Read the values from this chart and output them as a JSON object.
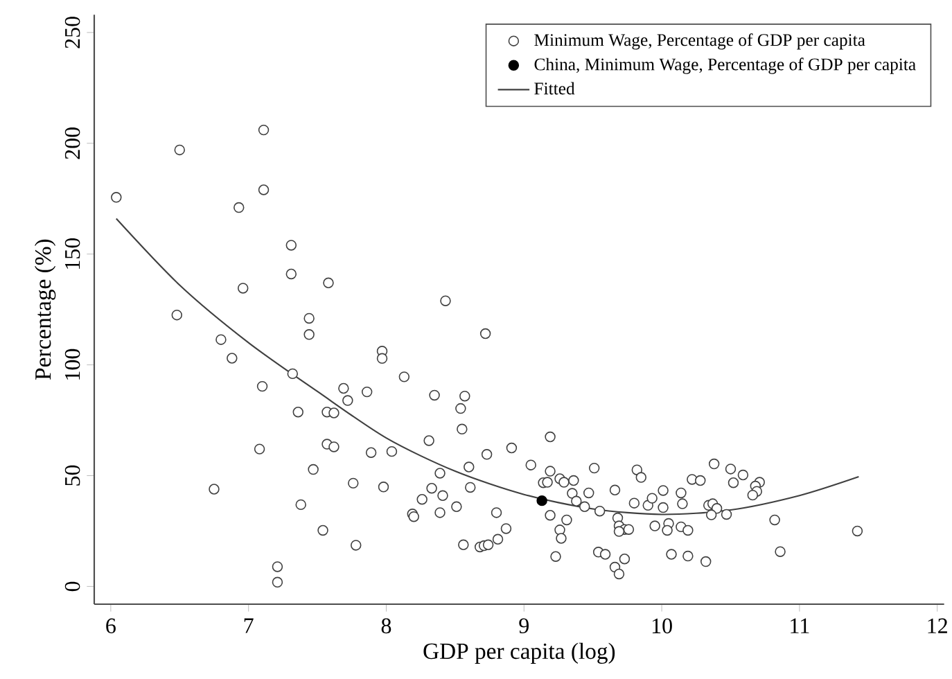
{
  "chart_data": {
    "type": "scatter",
    "xlabel": "GDP per capita (log)",
    "ylabel": "Percentage (%)",
    "xlim": [
      5.88,
      12.05
    ],
    "ylim": [
      -8,
      258
    ],
    "xticks": [
      6,
      7,
      8,
      9,
      10,
      11,
      12
    ],
    "yticks": [
      0,
      50,
      100,
      150,
      200,
      250
    ],
    "grid": false,
    "legend": "top right",
    "series": [
      {
        "name": "Minimum Wage, Percentage of GDP per capita",
        "color": "#404040",
        "marker": "circle",
        "x": [
          6.04,
          6.5,
          7.11,
          7.11,
          6.93,
          7.31,
          7.31,
          7.58,
          6.96,
          6.48,
          7.44,
          7.44,
          6.8,
          6.88,
          7.32,
          7.1,
          7.69,
          7.72,
          7.36,
          7.57,
          7.62,
          7.57,
          7.62,
          7.08,
          7.47,
          7.76,
          6.75,
          7.38,
          7.54,
          7.78,
          7.21,
          7.21,
          8.43,
          8.72,
          7.97,
          7.97,
          8.13,
          7.86,
          8.35,
          8.57,
          8.54,
          8.55,
          8.31,
          9.19,
          7.89,
          8.04,
          8.73,
          8.91,
          8.6,
          9.05,
          9.51,
          8.39,
          9.19,
          9.26,
          9.36,
          9.14,
          9.17,
          9.29,
          7.98,
          8.33,
          8.61,
          8.41,
          9.66,
          9.35,
          9.47,
          8.26,
          9.38,
          9.44,
          9.55,
          8.51,
          8.39,
          8.8,
          8.19,
          8.2,
          9.19,
          9.31,
          8.87,
          9.26,
          9.27,
          8.81,
          8.56,
          8.68,
          8.71,
          8.74,
          9.23,
          9.54,
          9.59,
          9.66,
          9.69,
          9.82,
          9.85,
          9.8,
          9.9,
          9.93,
          10.01,
          10.01,
          10.14,
          10.15,
          10.22,
          10.28,
          10.38,
          10.5,
          10.59,
          10.52,
          10.71,
          10.68,
          10.69,
          10.66,
          10.34,
          10.37,
          10.4,
          10.36,
          10.47,
          9.68,
          9.69,
          9.73,
          9.76,
          9.69,
          9.95,
          10.05,
          10.04,
          10.14,
          10.19,
          10.82,
          11.42,
          10.86,
          9.73,
          10.07,
          10.19,
          10.32
        ],
        "values": [
          175.6,
          197,
          206,
          179,
          171,
          154,
          141,
          137,
          134.6,
          122.5,
          121,
          113.7,
          111.4,
          103,
          96,
          90.3,
          89.4,
          83.9,
          78.7,
          78.7,
          78.3,
          64.2,
          63,
          62,
          52.8,
          46.6,
          43.9,
          36.9,
          25.3,
          18.6,
          8.9,
          1.9,
          128.9,
          114.1,
          106.2,
          102.9,
          94.6,
          87.8,
          86.3,
          85.9,
          80.3,
          71,
          65.8,
          67.5,
          60.4,
          60.9,
          59.6,
          62.5,
          53.9,
          54.8,
          53.4,
          51.1,
          52,
          48.6,
          47.8,
          46.8,
          47,
          47,
          44.9,
          44.3,
          44.7,
          41,
          43.5,
          42,
          42.2,
          39.3,
          38.5,
          36,
          34,
          36,
          33.3,
          33.3,
          32.7,
          31.5,
          32.1,
          30,
          26.1,
          25.5,
          21.7,
          21.3,
          18.8,
          17.8,
          18.4,
          18.8,
          13.5,
          15.5,
          14.5,
          8.7,
          5.6,
          52.6,
          49.2,
          37.6,
          36.6,
          39.8,
          43.3,
          35.6,
          42.2,
          37.3,
          48.3,
          47.8,
          55.3,
          53,
          50.3,
          46.8,
          47,
          45.3,
          42.9,
          41.2,
          36.6,
          37.3,
          35.2,
          32.3,
          32.5,
          30.9,
          27.3,
          25.7,
          25.7,
          24.8,
          27.3,
          28.4,
          25.3,
          26.9,
          25.3,
          30,
          25,
          15.7,
          12.4,
          14.5,
          13.7,
          11.2
        ]
      },
      {
        "name": "China, Minimum Wage, Percentage of GDP per capita",
        "color": "#000000",
        "marker": "circle",
        "x": [
          9.13
        ],
        "values": [
          38.7
        ]
      },
      {
        "name": "Fitted",
        "color": "#404040",
        "type": "line",
        "marker": "none",
        "x": [
          6.04,
          6.5,
          7,
          7.5,
          8,
          8.5,
          9,
          9.5,
          10,
          10.5,
          11,
          11.43
        ],
        "values": [
          166,
          136,
          110,
          88,
          67,
          52,
          41.5,
          35,
          32.5,
          34.5,
          41,
          49.5
        ]
      }
    ]
  }
}
